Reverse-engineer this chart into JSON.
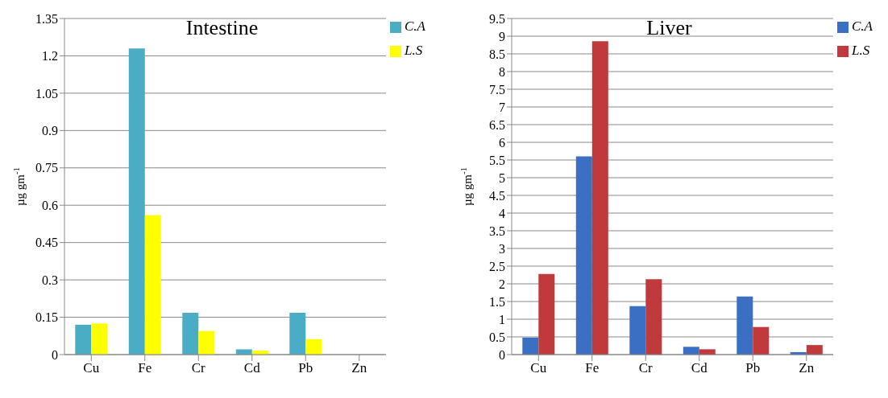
{
  "chart_data": [
    {
      "type": "bar",
      "title": "Intestine",
      "ylabel": "µg gm$^{-1}$",
      "categories": [
        "Cu",
        "Fe",
        "Cr",
        "Cd",
        "Pb",
        "Zn"
      ],
      "series": [
        {
          "name": "C.A",
          "color": "#4bacc6",
          "values": [
            0.12,
            1.23,
            0.168,
            0.021,
            0.168,
            0
          ]
        },
        {
          "name": "L.S",
          "color": "#ffff00",
          "values": [
            0.125,
            0.56,
            0.095,
            0.016,
            0.062,
            0
          ]
        }
      ],
      "ylim": [
        0,
        1.35
      ],
      "yticks": [
        0,
        0.15,
        0.3,
        0.45,
        0.6,
        0.75,
        0.9,
        1.05,
        1.2,
        1.35
      ],
      "grid": "y",
      "legend": "top right"
    },
    {
      "type": "bar",
      "title": "Liver",
      "ylabel": "µg gm$^{-1}$",
      "categories": [
        "Cu",
        "Fe",
        "Cr",
        "Cd",
        "Pb",
        "Zn"
      ],
      "series": [
        {
          "name": "C.A",
          "color": "#3a6fc4",
          "values": [
            0.48,
            5.6,
            1.37,
            0.22,
            1.64,
            0.07
          ]
        },
        {
          "name": "L.S",
          "color": "#c0393b",
          "values": [
            2.28,
            8.86,
            2.13,
            0.15,
            0.78,
            0.27
          ]
        }
      ],
      "ylim": [
        0,
        9.5
      ],
      "yticks": [
        0,
        0.5,
        1,
        1.5,
        2,
        2.5,
        3,
        3.5,
        4,
        4.5,
        5,
        5.5,
        6,
        6.5,
        7,
        7.5,
        8,
        8.5,
        9,
        9.5
      ],
      "grid": "y",
      "legend": "top right"
    }
  ]
}
